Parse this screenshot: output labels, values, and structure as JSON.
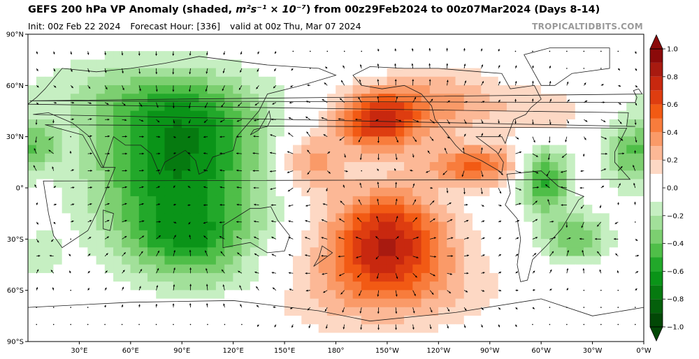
{
  "title_prefix": "GEFS 200 hPa VP Anomaly (shaded, ",
  "title_units": "m²s⁻¹ × 10⁻⁷",
  "title_suffix": ") from 00z29Feb2024 to 00z07Mar2024 (Days 8-14)",
  "init": "Init: 00z Feb 22 2024",
  "forecast_hour": "Forecast Hour: [336]",
  "valid": "valid at 00z Thu, Mar 07 2024",
  "credit": "TROPICALTIDBITS.COM",
  "lat_labels": [
    {
      "lat": 90,
      "text": "90°N"
    },
    {
      "lat": 60,
      "text": "60°N"
    },
    {
      "lat": 30,
      "text": "30°N"
    },
    {
      "lat": 0,
      "text": "0°"
    },
    {
      "lat": -30,
      "text": "30°S"
    },
    {
      "lat": -60,
      "text": "60°S"
    },
    {
      "lat": -90,
      "text": "90°S"
    }
  ],
  "lon_labels": [
    {
      "lon": 30,
      "text": "30°E"
    },
    {
      "lon": 60,
      "text": "60°E"
    },
    {
      "lon": 90,
      "text": "90°E"
    },
    {
      "lon": 120,
      "text": "120°E"
    },
    {
      "lon": 150,
      "text": "150°E"
    },
    {
      "lon": 180,
      "text": "180°"
    },
    {
      "lon": 210,
      "text": "150°W"
    },
    {
      "lon": 240,
      "text": "120°W"
    },
    {
      "lon": 270,
      "text": "90°W"
    },
    {
      "lon": 300,
      "text": "60°W"
    },
    {
      "lon": 330,
      "text": "30°W"
    },
    {
      "lon": 360,
      "text": "0°W"
    }
  ],
  "colorbar": {
    "ticks": [
      {
        "value": 1.0,
        "text": "1.0"
      },
      {
        "value": 0.8,
        "text": "0.8"
      },
      {
        "value": 0.6,
        "text": "0.6"
      },
      {
        "value": 0.4,
        "text": "0.4"
      },
      {
        "value": 0.2,
        "text": "0.2"
      },
      {
        "value": 0.0,
        "text": "0.0"
      },
      {
        "value": -0.2,
        "text": "−0.2"
      },
      {
        "value": -0.4,
        "text": "−0.4"
      },
      {
        "value": -0.6,
        "text": "−0.6"
      },
      {
        "value": -0.8,
        "text": "−0.8"
      },
      {
        "value": -1.0,
        "text": "−1.0"
      }
    ],
    "bins": [
      {
        "from": 0.9,
        "to": 1.0,
        "color": "#8b0a0a"
      },
      {
        "from": 0.8,
        "to": 0.9,
        "color": "#a81a10"
      },
      {
        "from": 0.7,
        "to": 0.8,
        "color": "#c8280f"
      },
      {
        "from": 0.6,
        "to": 0.7,
        "color": "#de3d10"
      },
      {
        "from": 0.5,
        "to": 0.6,
        "color": "#f25a14"
      },
      {
        "from": 0.4,
        "to": 0.5,
        "color": "#f87c3c"
      },
      {
        "from": 0.3,
        "to": 0.4,
        "color": "#fa9a68"
      },
      {
        "from": 0.2,
        "to": 0.3,
        "color": "#fcb896"
      },
      {
        "from": 0.1,
        "to": 0.2,
        "color": "#fdd8c4"
      },
      {
        "from": -0.1,
        "to": 0.1,
        "color": "#ffffff"
      },
      {
        "from": -0.2,
        "to": -0.1,
        "color": "#c6efc2"
      },
      {
        "from": -0.3,
        "to": -0.2,
        "color": "#a2e09a"
      },
      {
        "from": -0.4,
        "to": -0.3,
        "color": "#7ccf70"
      },
      {
        "from": -0.5,
        "to": -0.4,
        "color": "#4fbe48"
      },
      {
        "from": -0.6,
        "to": -0.5,
        "color": "#22a82a"
      },
      {
        "from": -0.7,
        "to": -0.6,
        "color": "#0a9418"
      },
      {
        "from": -0.8,
        "to": -0.7,
        "color": "#067a10"
      },
      {
        "from": -0.9,
        "to": -0.8,
        "color": "#04600b"
      },
      {
        "from": -1.0,
        "to": -0.9,
        "color": "#024806"
      }
    ]
  },
  "anomaly_centers": [
    {
      "lon": 88,
      "lat": 3,
      "value": -0.65,
      "rx": 50,
      "ry": 40
    },
    {
      "lon": 95,
      "lat": 40,
      "value": -0.3,
      "rx": 45,
      "ry": 25
    },
    {
      "lon": 60,
      "lat": 55,
      "value": -0.2,
      "rx": 65,
      "ry": 25
    },
    {
      "lon": 95,
      "lat": -32,
      "value": -0.35,
      "rx": 35,
      "ry": 18
    },
    {
      "lon": 110,
      "lat": -55,
      "value": -0.15,
      "rx": 45,
      "ry": 12
    },
    {
      "lon": 8,
      "lat": 25,
      "value": -0.25,
      "rx": 12,
      "ry": 12
    },
    {
      "lon": 8,
      "lat": -40,
      "value": -0.15,
      "rx": 12,
      "ry": 15
    },
    {
      "lon": 302,
      "lat": 5,
      "value": -0.55,
      "rx": 15,
      "ry": 20
    },
    {
      "lon": 320,
      "lat": -30,
      "value": -0.4,
      "rx": 20,
      "ry": 15
    },
    {
      "lon": 350,
      "lat": 20,
      "value": -0.35,
      "rx": 15,
      "ry": 20
    },
    {
      "lon": 205,
      "lat": 40,
      "value": 0.75,
      "rx": 25,
      "ry": 18
    },
    {
      "lon": 210,
      "lat": -30,
      "value": 0.75,
      "rx": 35,
      "ry": 30
    },
    {
      "lon": 262,
      "lat": 13,
      "value": 0.5,
      "rx": 28,
      "ry": 12
    },
    {
      "lon": 165,
      "lat": 15,
      "value": 0.35,
      "rx": 20,
      "ry": 18
    },
    {
      "lon": 205,
      "lat": -60,
      "value": 0.25,
      "rx": 70,
      "ry": 25
    },
    {
      "lon": 300,
      "lat": 45,
      "value": 0.2,
      "rx": 30,
      "ry": 15
    },
    {
      "lon": 245,
      "lat": 50,
      "value": 0.3,
      "rx": 30,
      "ry": 20
    }
  ]
}
